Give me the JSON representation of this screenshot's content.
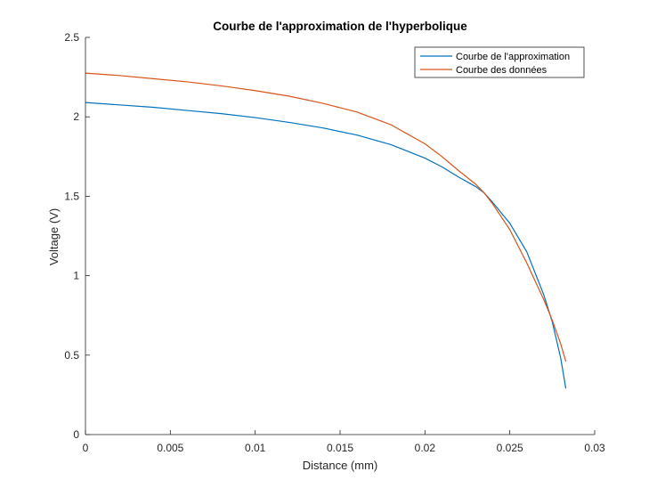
{
  "chart_data": {
    "type": "line",
    "title": "Courbe de l'approximation de l'hyperbolique",
    "xlabel": "Distance (mm)",
    "ylabel": "Voltage (V)",
    "xlim": [
      0,
      0.03
    ],
    "ylim": [
      0,
      2.5
    ],
    "xticks": [
      0,
      0.005,
      0.01,
      0.015,
      0.02,
      0.025,
      0.03
    ],
    "xtick_labels": [
      "0",
      "0.005",
      "0.01",
      "0.015",
      "0.02",
      "0.025",
      "0.03"
    ],
    "yticks": [
      0,
      0.5,
      1,
      1.5,
      2,
      2.5
    ],
    "ytick_labels": [
      "0",
      "0.5",
      "1",
      "1.5",
      "2",
      "2.5"
    ],
    "grid": false,
    "legend_position": "top-right",
    "series": [
      {
        "name": "Courbe de l'approximation",
        "color": "#0072BD",
        "x": [
          0,
          0.002,
          0.004,
          0.006,
          0.008,
          0.01,
          0.012,
          0.014,
          0.016,
          0.018,
          0.02,
          0.021,
          0.022,
          0.023,
          0.0235,
          0.024,
          0.025,
          0.026,
          0.027,
          0.0275,
          0.028,
          0.0283
        ],
        "y": [
          2.09,
          2.075,
          2.06,
          2.04,
          2.02,
          1.995,
          1.965,
          1.93,
          1.885,
          1.825,
          1.74,
          1.685,
          1.62,
          1.56,
          1.52,
          1.46,
          1.33,
          1.15,
          0.88,
          0.71,
          0.48,
          0.29
        ]
      },
      {
        "name": "Courbe des données",
        "color": "#D95319",
        "x": [
          0,
          0.002,
          0.004,
          0.006,
          0.008,
          0.01,
          0.012,
          0.014,
          0.016,
          0.018,
          0.02,
          0.021,
          0.022,
          0.023,
          0.0235,
          0.024,
          0.025,
          0.026,
          0.027,
          0.0275,
          0.028,
          0.0283
        ],
        "y": [
          2.275,
          2.26,
          2.24,
          2.22,
          2.195,
          2.165,
          2.13,
          2.085,
          2.03,
          1.95,
          1.83,
          1.75,
          1.66,
          1.575,
          1.52,
          1.45,
          1.29,
          1.08,
          0.85,
          0.72,
          0.57,
          0.46
        ]
      }
    ]
  }
}
